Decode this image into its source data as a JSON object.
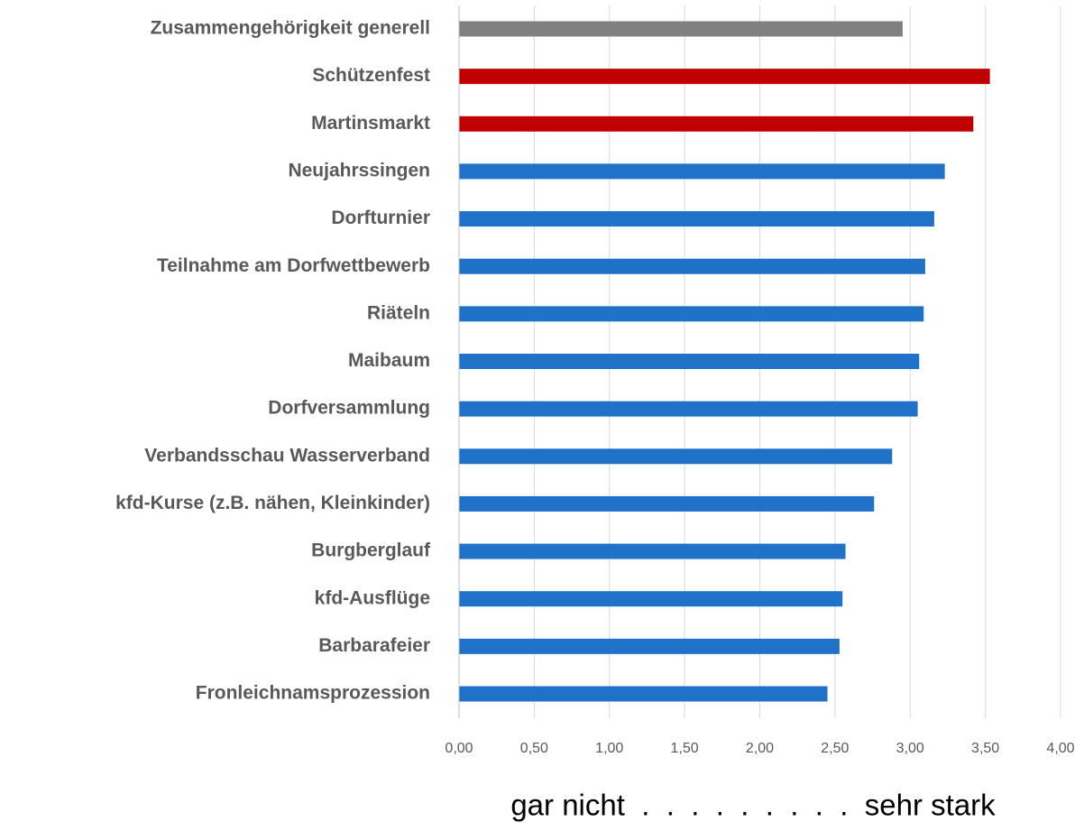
{
  "chart_data": {
    "type": "barh",
    "categories": [
      "Zusammengehörigkeit generell",
      "Schützenfest",
      "Martinsmarkt",
      "Neujahrssingen",
      "Dorfturnier",
      "Teilnahme am Dorfwettbewerb",
      "Riäteln",
      "Maibaum",
      "Dorfversammlung",
      "Verbandsschau Wasserverband",
      "kfd-Kurse (z.B. nähen, Kleinkinder)",
      "Burgberglauf",
      "kfd-Ausflüge",
      "Barbarafeier",
      "Fronleichnamsprozession"
    ],
    "values": [
      2.95,
      3.53,
      3.42,
      3.23,
      3.16,
      3.1,
      3.09,
      3.06,
      3.05,
      2.88,
      2.76,
      2.57,
      2.55,
      2.53,
      2.45
    ],
    "colors": [
      "#808080",
      "#c00000",
      "#c00000",
      "#1f72c8",
      "#1f72c8",
      "#1f72c8",
      "#1f72c8",
      "#1f72c8",
      "#1f72c8",
      "#1f72c8",
      "#1f72c8",
      "#1f72c8",
      "#1f72c8",
      "#1f72c8",
      "#1f72c8"
    ],
    "xlim": [
      0,
      4
    ],
    "xticks": [
      {
        "value": 0,
        "label": "0,00"
      },
      {
        "value": 0.5,
        "label": "0,50"
      },
      {
        "value": 1,
        "label": "1,00"
      },
      {
        "value": 1.5,
        "label": "1,50"
      },
      {
        "value": 2,
        "label": "2,00"
      },
      {
        "value": 2.5,
        "label": "2,50"
      },
      {
        "value": 3,
        "label": "3,00"
      },
      {
        "value": 3.5,
        "label": "3,50"
      },
      {
        "value": 4,
        "label": "4,00"
      }
    ],
    "grid": true,
    "annotation": "gar nicht  .  .  .  .  .  .  .  .  .  sehr stark"
  }
}
